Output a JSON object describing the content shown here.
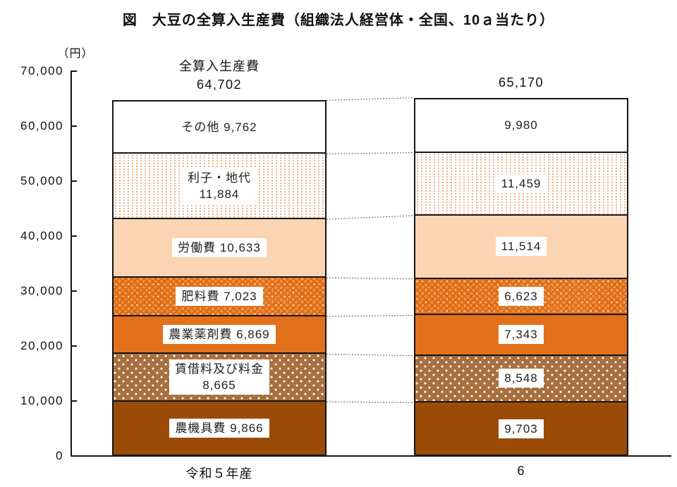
{
  "title": "図　大豆の全算入生産費（組織法人経営体・全国、10ａ当たり）",
  "unit_label": "（円）",
  "header": {
    "label": "全算入生産費"
  },
  "chart_data": {
    "type": "bar",
    "stacked": true,
    "title": "図　大豆の全算入生産費（組織法人経営体・全国、10ａ当たり）",
    "ylabel": "（円）",
    "ylim": [
      0,
      70000
    ],
    "grid": false,
    "y_ticks": [
      "70,000",
      "60,000",
      "50,000",
      "40,000",
      "30,000",
      "20,000",
      "10,000",
      "0"
    ],
    "categories": [
      "令和５年産",
      "6"
    ],
    "totals": [
      "64,702",
      "65,170"
    ],
    "series": [
      {
        "name": "農機具費",
        "values": [
          9866,
          9703
        ],
        "labels": [
          [
            "農機具費 9,866"
          ],
          [
            "9,703"
          ]
        ],
        "style": "solid-darkbrown"
      },
      {
        "name": "賃借料及び料金",
        "values": [
          8665,
          8548
        ],
        "labels": [
          [
            "賃借料及び料金",
            "8,665"
          ],
          [
            "8,548"
          ]
        ],
        "style": "dots-brown"
      },
      {
        "name": "農業薬剤費",
        "values": [
          6869,
          7343
        ],
        "labels": [
          [
            "農業薬剤費 6,869"
          ],
          [
            "7,343"
          ]
        ],
        "style": "solid-orange"
      },
      {
        "name": "肥料費",
        "values": [
          7023,
          6623
        ],
        "labels": [
          [
            "肥料費 7,023"
          ],
          [
            "6,623"
          ]
        ],
        "style": "cross-orange"
      },
      {
        "name": "労働費",
        "values": [
          10633,
          11514
        ],
        "labels": [
          [
            "労働費 10,633"
          ],
          [
            "11,514"
          ]
        ],
        "style": "solid-peach"
      },
      {
        "name": "利子・地代",
        "values": [
          11884,
          11459
        ],
        "labels": [
          [
            "利子・地代",
            "11,884"
          ],
          [
            "11,459"
          ]
        ],
        "style": "dots-orange-white"
      },
      {
        "name": "その他",
        "values": [
          9762,
          9980
        ],
        "labels": [
          [
            "その他 9,762"
          ],
          [
            "9,980"
          ]
        ],
        "style": "solid-white"
      }
    ],
    "colors": {
      "dark_brown": "#9A4B08",
      "brown": "#A8703F",
      "orange": "#E2711B",
      "peach": "#FBD5B3",
      "white": "#FFFFFF",
      "axis": "#161616",
      "connector": "#777777"
    }
  }
}
